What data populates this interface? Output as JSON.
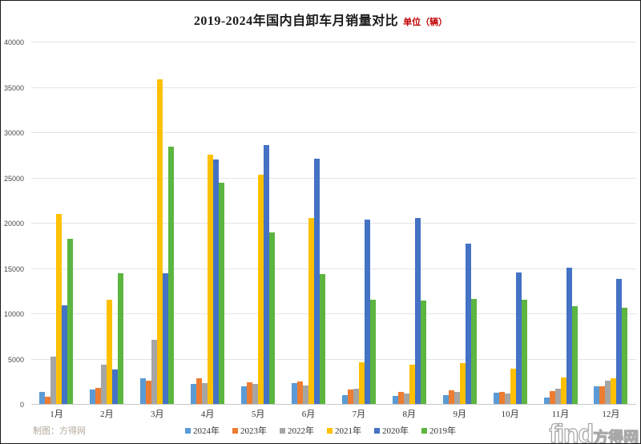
{
  "header": {
    "title": "2019-2024年国内自卸车月销量对比",
    "unit_label": "单位（辆）"
  },
  "footer": {
    "credit": "制图：方得网",
    "watermark_latin": "find",
    "watermark_cjk": "方得网"
  },
  "chart_data": {
    "type": "bar",
    "title": "2019-2024年国内自卸车月销量对比",
    "unit": "辆",
    "categories": [
      "1月",
      "2月",
      "3月",
      "4月",
      "5月",
      "6月",
      "7月",
      "8月",
      "9月",
      "10月",
      "11月",
      "12月"
    ],
    "series": [
      {
        "name": "2024年",
        "color": "#5B9BD5",
        "values": [
          1400,
          1700,
          2900,
          2300,
          2000,
          2400,
          1100,
          1000,
          1100,
          1300,
          800,
          2000
        ]
      },
      {
        "name": "2023年",
        "color": "#ED7D31",
        "values": [
          900,
          1900,
          2700,
          2900,
          2500,
          2600,
          1700,
          1400,
          1600,
          1400,
          1500,
          2000
        ]
      },
      {
        "name": "2022年",
        "color": "#A5A5A5",
        "values": [
          5300,
          4400,
          7200,
          2400,
          2300,
          2100,
          1800,
          1200,
          1400,
          1200,
          1800,
          2700
        ]
      },
      {
        "name": "2021年",
        "color": "#FFC000",
        "values": [
          21100,
          11600,
          35900,
          27600,
          25400,
          20600,
          4700,
          4400,
          4600,
          4000,
          3000,
          2900
        ]
      },
      {
        "name": "2020年",
        "color": "#4472C4",
        "values": [
          11000,
          3900,
          14500,
          27100,
          28700,
          27200,
          20400,
          20600,
          17800,
          14600,
          15100,
          13900
        ]
      },
      {
        "name": "2019年",
        "color": "#5CB540",
        "values": [
          18300,
          14500,
          28500,
          24500,
          19000,
          14400,
          11600,
          11500,
          11700,
          11600,
          10900,
          10700
        ]
      }
    ],
    "ylim": [
      0,
      40000
    ],
    "yticks": [
      0,
      5000,
      10000,
      15000,
      20000,
      25000,
      30000,
      35000,
      40000
    ],
    "grid": true,
    "legend_position": "bottom"
  }
}
